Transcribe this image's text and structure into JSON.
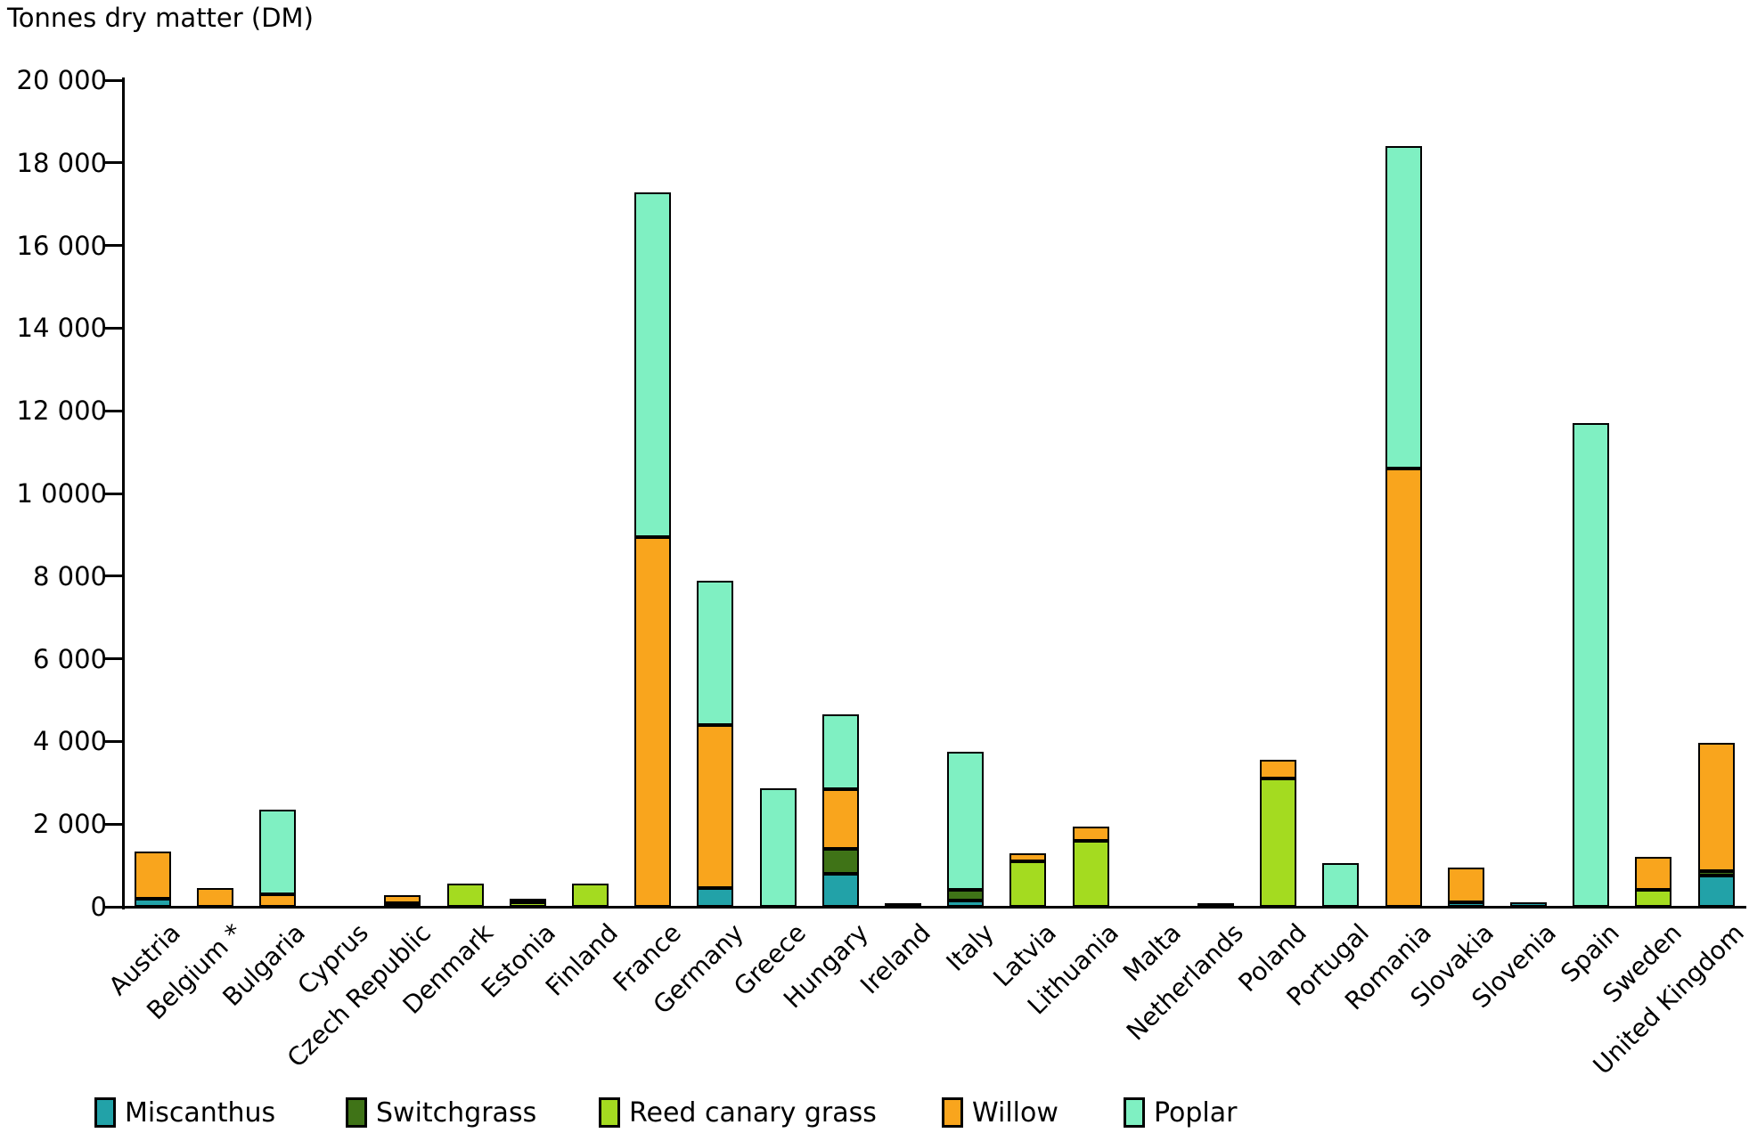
{
  "title": "Tonnes dry matter (DM)",
  "chart_data": {
    "type": "bar",
    "stacked": true,
    "title": "Tonnes dry matter (DM)",
    "ylabel": "Tonnes dry matter (DM)",
    "ylim": [
      0,
      20000
    ],
    "ytick_interval": 2000,
    "ytick_labels_bottom_to_top": [
      "0",
      "2 000",
      "4 000",
      "6 000",
      "8 000",
      "1 0000",
      "12 000",
      "14 000",
      "16 000",
      "18 000",
      "20 000"
    ],
    "grid": false,
    "legend_position": "bottom",
    "categories": [
      "Austria",
      "Belgium *",
      "Bulgaria",
      "Cyprus",
      "Czech Republic",
      "Denmark",
      "Estonia",
      "Finland",
      "France",
      "Germany",
      "Greece",
      "Hungary",
      "Ireland",
      "Italy",
      "Latvia",
      "Lithuania",
      "Malta",
      "Netherlands",
      "Poland",
      "Portugal",
      "Romania",
      "Slovakia",
      "Slovenia",
      "Spain",
      "Sweden",
      "United Kingdom"
    ],
    "series": [
      {
        "name": "Miscanthus",
        "color": "#22A2A8",
        "values": [
          200,
          0,
          0,
          0,
          80,
          0,
          0,
          0,
          0,
          450,
          0,
          800,
          50,
          150,
          0,
          0,
          0,
          0,
          0,
          0,
          0,
          100,
          100,
          0,
          0,
          750
        ]
      },
      {
        "name": "Switchgrass",
        "color": "#3F7317",
        "values": [
          0,
          0,
          0,
          0,
          0,
          0,
          0,
          0,
          0,
          0,
          0,
          600,
          0,
          250,
          0,
          0,
          0,
          0,
          0,
          0,
          0,
          0,
          0,
          0,
          0,
          100
        ]
      },
      {
        "name": "Reed canary grass",
        "color": "#A4DB20",
        "values": [
          0,
          0,
          0,
          0,
          0,
          550,
          100,
          550,
          0,
          0,
          0,
          0,
          0,
          0,
          1100,
          1600,
          0,
          0,
          3100,
          0,
          0,
          0,
          0,
          0,
          400,
          0
        ]
      },
      {
        "name": "Willow",
        "color": "#F9A51D",
        "values": [
          1150,
          450,
          300,
          0,
          200,
          0,
          70,
          0,
          8950,
          3950,
          0,
          1450,
          0,
          0,
          200,
          350,
          0,
          80,
          450,
          0,
          10600,
          850,
          0,
          0,
          800,
          3100
        ]
      },
      {
        "name": "Poplar",
        "color": "#7FF0C2",
        "values": [
          0,
          0,
          2050,
          0,
          0,
          0,
          0,
          0,
          8350,
          3500,
          2870,
          1800,
          0,
          3350,
          0,
          0,
          0,
          0,
          0,
          1050,
          7800,
          0,
          0,
          11700,
          0,
          0
        ]
      }
    ],
    "totals": [
      1350,
      450,
      2350,
      0,
      280,
      550,
      170,
      550,
      17300,
      7900,
      2870,
      4650,
      50,
      3750,
      1300,
      1950,
      0,
      80,
      3550,
      1050,
      18400,
      950,
      100,
      11700,
      1200,
      3950
    ]
  },
  "legend": {
    "items": [
      "Miscanthus",
      "Switchgrass",
      "Reed canary grass",
      "Willow",
      "Poplar"
    ]
  }
}
